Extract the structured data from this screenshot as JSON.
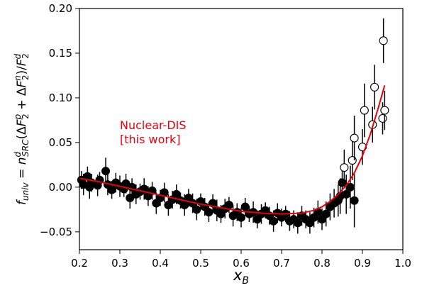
{
  "chart_data": {
    "type": "scatter",
    "xlabel": "x_B",
    "ylabel": "f_univ = n^d_SRC(ΔF^p_2 + ΔF^n_2)/F^d_2",
    "xlim": [
      0.2,
      1.0
    ],
    "ylim": [
      -0.07,
      0.2
    ],
    "x_ticks": [
      "0.2",
      "0.3",
      "0.4",
      "0.5",
      "0.6",
      "0.7",
      "0.8",
      "0.9",
      "1.0"
    ],
    "y_ticks": [
      "−0.05",
      "0.00",
      "0.05",
      "0.10",
      "0.15",
      "0.20"
    ],
    "grid": false,
    "annotation": {
      "lines": [
        "Nuclear-DIS",
        "[this work]"
      ],
      "color": "#e8000b",
      "x": 0.3,
      "y": 0.057
    },
    "series": [
      {
        "marker": "filled-circle",
        "color": "#000000",
        "x": [
          0.205,
          0.21,
          0.22,
          0.225,
          0.23,
          0.245,
          0.25,
          0.265,
          0.27,
          0.28,
          0.29,
          0.3,
          0.31,
          0.315,
          0.325,
          0.33,
          0.34,
          0.35,
          0.36,
          0.37,
          0.38,
          0.39,
          0.4,
          0.41,
          0.42,
          0.43,
          0.44,
          0.45,
          0.46,
          0.47,
          0.48,
          0.49,
          0.5,
          0.51,
          0.52,
          0.53,
          0.54,
          0.55,
          0.56,
          0.57,
          0.58,
          0.59,
          0.6,
          0.61,
          0.62,
          0.63,
          0.64,
          0.65,
          0.66,
          0.67,
          0.68,
          0.69,
          0.7,
          0.71,
          0.72,
          0.73,
          0.74,
          0.75,
          0.76,
          0.77,
          0.78,
          0.79,
          0.8,
          0.81,
          0.82,
          0.83,
          0.84,
          0.845,
          0.85,
          0.86,
          0.87,
          0.88
        ],
        "y": [
          0.008,
          0.003,
          0.012,
          0.0,
          0.005,
          0.002,
          0.008,
          0.018,
          0.003,
          -0.003,
          0.005,
          0.001,
          -0.002,
          0.004,
          -0.012,
          0.0,
          -0.008,
          -0.005,
          -0.002,
          -0.01,
          -0.004,
          -0.018,
          -0.012,
          -0.006,
          -0.02,
          -0.014,
          -0.008,
          -0.015,
          -0.02,
          -0.012,
          -0.018,
          -0.025,
          -0.016,
          -0.022,
          -0.028,
          -0.018,
          -0.026,
          -0.03,
          -0.024,
          -0.02,
          -0.032,
          -0.028,
          -0.034,
          -0.022,
          -0.03,
          -0.028,
          -0.036,
          -0.03,
          -0.026,
          -0.032,
          -0.038,
          -0.029,
          -0.034,
          -0.03,
          -0.038,
          -0.036,
          -0.04,
          -0.032,
          -0.036,
          -0.04,
          -0.034,
          -0.028,
          -0.036,
          -0.03,
          -0.022,
          -0.018,
          -0.015,
          -0.01,
          0.005,
          -0.008,
          0.0,
          -0.015
        ],
        "err": [
          0.01,
          0.012,
          0.011,
          0.013,
          0.01,
          0.012,
          0.009,
          0.015,
          0.012,
          0.01,
          0.011,
          0.012,
          0.009,
          0.011,
          0.012,
          0.01,
          0.011,
          0.009,
          0.012,
          0.011,
          0.01,
          0.012,
          0.009,
          0.011,
          0.012,
          0.01,
          0.011,
          0.009,
          0.012,
          0.01,
          0.011,
          0.012,
          0.009,
          0.01,
          0.011,
          0.01,
          0.012,
          0.01,
          0.011,
          0.009,
          0.012,
          0.01,
          0.011,
          0.01,
          0.009,
          0.012,
          0.01,
          0.011,
          0.009,
          0.01,
          0.012,
          0.011,
          0.01,
          0.009,
          0.011,
          0.01,
          0.012,
          0.011,
          0.01,
          0.012,
          0.011,
          0.013,
          0.012,
          0.014,
          0.015,
          0.016,
          0.018,
          0.02,
          0.02,
          0.022,
          0.024,
          0.03
        ]
      },
      {
        "marker": "open-circle",
        "color": "#000000",
        "x": [
          0.855,
          0.875,
          0.88,
          0.9,
          0.905,
          0.925,
          0.93,
          0.95,
          0.955,
          0.952
        ],
        "y": [
          0.022,
          0.03,
          0.055,
          0.045,
          0.086,
          0.07,
          0.112,
          0.077,
          0.086,
          0.164
        ],
        "err": [
          0.02,
          0.022,
          0.025,
          0.02,
          0.03,
          0.02,
          0.025,
          0.018,
          0.022,
          0.025
        ]
      }
    ],
    "fit_line": {
      "color": "#e8000b",
      "x": [
        0.2,
        0.25,
        0.3,
        0.35,
        0.4,
        0.45,
        0.5,
        0.55,
        0.6,
        0.65,
        0.7,
        0.75,
        0.78,
        0.8,
        0.82,
        0.84,
        0.86,
        0.88,
        0.9,
        0.92,
        0.94,
        0.955
      ],
      "y": [
        0.01,
        0.006,
        0.001,
        -0.004,
        -0.009,
        -0.014,
        -0.019,
        -0.023,
        -0.027,
        -0.029,
        -0.03,
        -0.029,
        -0.026,
        -0.022,
        -0.016,
        -0.008,
        0.002,
        0.016,
        0.035,
        0.06,
        0.09,
        0.114
      ]
    }
  }
}
